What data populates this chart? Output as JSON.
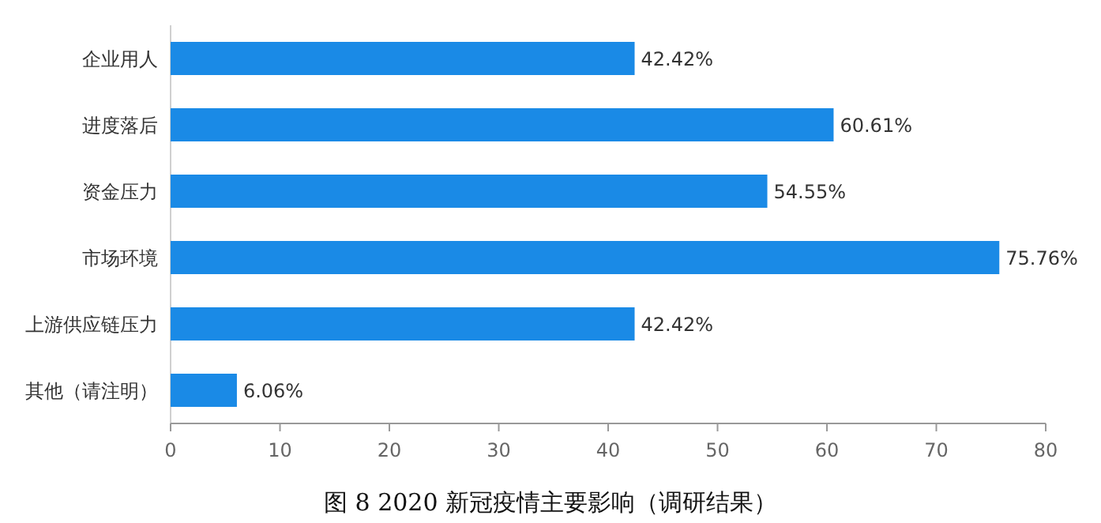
{
  "chart_data": {
    "type": "bar",
    "orientation": "horizontal",
    "title": "图 8 2020 新冠疫情主要影响（调研结果）",
    "categories": [
      "企业用人",
      "进度落后",
      "资金压力",
      "市场环境",
      "上游供应链压力",
      "其他（请注明）"
    ],
    "values": [
      42.42,
      60.61,
      54.55,
      75.76,
      42.42,
      6.06
    ],
    "value_labels": [
      "42.42%",
      "60.61%",
      "54.55%",
      "75.76%",
      "42.42%",
      "6.06%"
    ],
    "color": "#1a8ae6",
    "xlim": [
      0,
      80
    ],
    "xticks": [
      0,
      10,
      20,
      30,
      40,
      50,
      60,
      70,
      80
    ]
  }
}
